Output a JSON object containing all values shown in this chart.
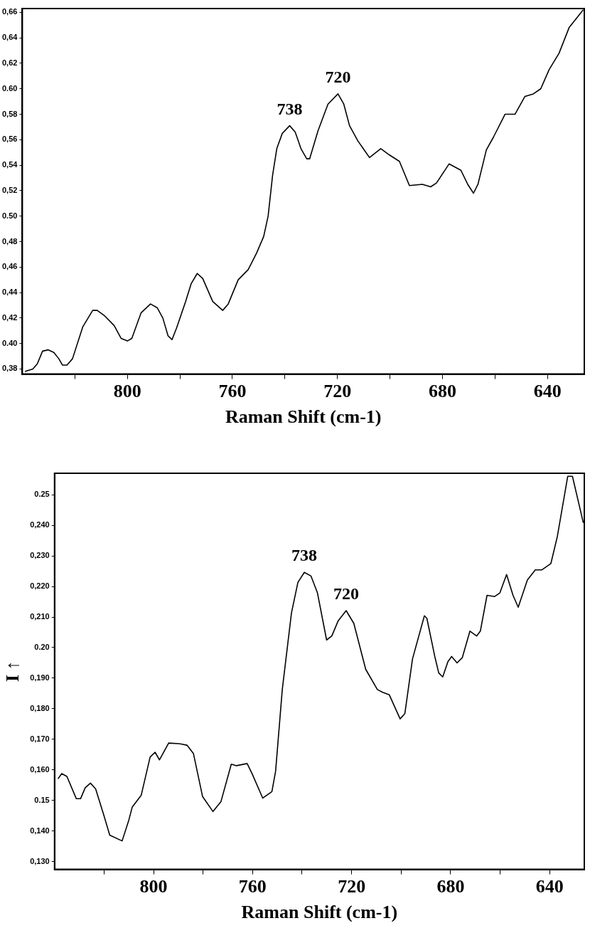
{
  "chart_data": [
    {
      "type": "line",
      "xlabel": "Raman Shift (cm-1)",
      "xlim": [
        840,
        626
      ],
      "ylim": [
        0.376,
        0.663
      ],
      "xticks": [
        {
          "value": 820,
          "label": null
        },
        800,
        {
          "value": 780,
          "label": null
        },
        760,
        {
          "value": 740,
          "label": null
        },
        720,
        {
          "value": 700,
          "label": null
        },
        680,
        {
          "value": 660,
          "label": null
        },
        640
      ],
      "yticks": [
        {
          "value": 0.38,
          "label": "0,38"
        },
        {
          "value": 0.4,
          "label": "0.40"
        },
        {
          "value": 0.42,
          "label": "0,42"
        },
        {
          "value": 0.44,
          "label": "0,44"
        },
        {
          "value": 0.46,
          "label": "0,46"
        },
        {
          "value": 0.48,
          "label": "0,48"
        },
        {
          "value": 0.5,
          "label": "0.50"
        },
        {
          "value": 0.52,
          "label": "0,52"
        },
        {
          "value": 0.54,
          "label": "0,54"
        },
        {
          "value": 0.56,
          "label": "0,56"
        },
        {
          "value": 0.58,
          "label": "0,58"
        },
        {
          "value": 0.6,
          "label": "0.60"
        },
        {
          "value": 0.62,
          "label": "0,62"
        },
        {
          "value": 0.64,
          "label": "0,64"
        },
        {
          "value": 0.66,
          "label": "0,66"
        }
      ],
      "grid": false,
      "legend": false,
      "annotations": [
        {
          "text": "738",
          "x": 738.2,
          "y": 0.571
        },
        {
          "text": "720",
          "x": 719.8,
          "y": 0.596
        }
      ],
      "series": [
        {
          "color": "#000000",
          "x": [
            839,
            836,
            834.3,
            832.3,
            830.2,
            828,
            826.1,
            824.7,
            823,
            820.9,
            817,
            813.2,
            811.5,
            808.8,
            805,
            802.4,
            800,
            798.3,
            794.8,
            791.2,
            788.6,
            786.5,
            784.5,
            783,
            781.3,
            777.8,
            775.7,
            773.4,
            771.3,
            767.5,
            763.7,
            761.6,
            757.8,
            754,
            750.8,
            748.1,
            746.4,
            744.7,
            743.1,
            741,
            738.2,
            736.1,
            733.9,
            731.7,
            730.6,
            727.4,
            723.6,
            719.8,
            717.6,
            715.4,
            712.2,
            707.8,
            703.5,
            700.2,
            696.4,
            692.6,
            687.7,
            684.5,
            682.3,
            677.5,
            673,
            670.4,
            668.2,
            666.5,
            663.3,
            660.6,
            656.2,
            652.4,
            648.6,
            645.4,
            642.6,
            639.4,
            635.6,
            631.8,
            626.4
          ],
          "values": [
            0.378,
            0.38,
            0.384,
            0.394,
            0.395,
            0.393,
            0.388,
            0.383,
            0.383,
            0.388,
            0.413,
            0.426,
            0.426,
            0.422,
            0.414,
            0.404,
            0.402,
            0.404,
            0.424,
            0.431,
            0.428,
            0.42,
            0.406,
            0.403,
            0.412,
            0.433,
            0.447,
            0.455,
            0.451,
            0.433,
            0.426,
            0.431,
            0.45,
            0.458,
            0.471,
            0.484,
            0.5,
            0.532,
            0.553,
            0.565,
            0.571,
            0.566,
            0.553,
            0.545,
            0.545,
            0.567,
            0.588,
            0.596,
            0.588,
            0.571,
            0.559,
            0.546,
            0.553,
            0.548,
            0.543,
            0.524,
            0.525,
            0.523,
            0.526,
            0.541,
            0.536,
            0.525,
            0.518,
            0.525,
            0.552,
            0.562,
            0.58,
            0.58,
            0.594,
            0.596,
            0.6,
            0.615,
            0.628,
            0.648,
            0.662
          ]
        }
      ]
    },
    {
      "type": "line",
      "xlabel": "Raman Shift (cm-1)",
      "ylabel": "I ↑",
      "xlim": [
        840,
        626
      ],
      "ylim": [
        0.1275,
        0.257
      ],
      "xticks": [
        {
          "value": 820,
          "label": null
        },
        800,
        {
          "value": 780,
          "label": null
        },
        760,
        {
          "value": 740,
          "label": null
        },
        720,
        {
          "value": 700,
          "label": null
        },
        680,
        {
          "value": 660,
          "label": null
        },
        640
      ],
      "yticks": [
        {
          "value": 0.13,
          "label": "0,130"
        },
        {
          "value": 0.14,
          "label": "0,140"
        },
        {
          "value": 0.15,
          "label": "0.15"
        },
        {
          "value": 0.16,
          "label": "0,160"
        },
        {
          "value": 0.17,
          "label": "0,170"
        },
        {
          "value": 0.18,
          "label": "0,180"
        },
        {
          "value": 0.19,
          "label": "0,190"
        },
        {
          "value": 0.2,
          "label": "0.20"
        },
        {
          "value": 0.21,
          "label": "0,210"
        },
        {
          "value": 0.22,
          "label": "0,220"
        },
        {
          "value": 0.23,
          "label": "0,230"
        },
        {
          "value": 0.24,
          "label": "0,240"
        },
        {
          "value": 0.25,
          "label": "0.25"
        }
      ],
      "grid": false,
      "legend": false,
      "annotations": [
        {
          "text": "738",
          "x": 739.1,
          "y": 0.2246
        },
        {
          "text": "720",
          "x": 722.2,
          "y": 0.2121
        }
      ],
      "series": [
        {
          "color": "#000000",
          "x": [
            838.6,
            837.1,
            835,
            831.2,
            829.5,
            827.6,
            825.5,
            823.4,
            820.2,
            817.7,
            812.7,
            810,
            808.6,
            805,
            801.4,
            799.4,
            797.6,
            793.9,
            789.6,
            786.5,
            783.9,
            780.2,
            776,
            772.8,
            768.6,
            766.5,
            762.2,
            760.2,
            755.9,
            752.2,
            750.7,
            748,
            744.3,
            741.7,
            739.1,
            736.4,
            733.8,
            730.1,
            728,
            725.4,
            722.2,
            719.1,
            714.3,
            709.6,
            707.5,
            704.8,
            700.4,
            698.5,
            695.4,
            690.6,
            689.6,
            686.4,
            684.8,
            683.2,
            681.1,
            679.6,
            677.4,
            675.3,
            672.2,
            669.5,
            668,
            665.3,
            662.2,
            660.1,
            657.4,
            654.8,
            652.7,
            649,
            645.8,
            643.2,
            639.5,
            636.9,
            632.7,
            630.8,
            626.4
          ],
          "values": [
            0.1571,
            0.1588,
            0.1579,
            0.1506,
            0.1506,
            0.1542,
            0.1557,
            0.1538,
            0.1455,
            0.1387,
            0.1368,
            0.1436,
            0.1479,
            0.1517,
            0.1642,
            0.1658,
            0.1633,
            0.1688,
            0.1686,
            0.1681,
            0.1654,
            0.1513,
            0.1464,
            0.1496,
            0.1619,
            0.1614,
            0.1621,
            0.1588,
            0.1508,
            0.1529,
            0.1596,
            0.1863,
            0.2113,
            0.2213,
            0.2246,
            0.2234,
            0.2179,
            0.2025,
            0.2038,
            0.2088,
            0.2121,
            0.2079,
            0.1929,
            0.1863,
            0.1854,
            0.1846,
            0.1767,
            0.1784,
            0.1963,
            0.2104,
            0.2096,
            0.1971,
            0.1917,
            0.1904,
            0.1954,
            0.1971,
            0.195,
            0.1967,
            0.2054,
            0.2038,
            0.2054,
            0.2171,
            0.2167,
            0.2179,
            0.2239,
            0.2171,
            0.2132,
            0.2221,
            0.2254,
            0.2254,
            0.2275,
            0.2363,
            0.256,
            0.256,
            0.2408
          ]
        }
      ]
    }
  ]
}
